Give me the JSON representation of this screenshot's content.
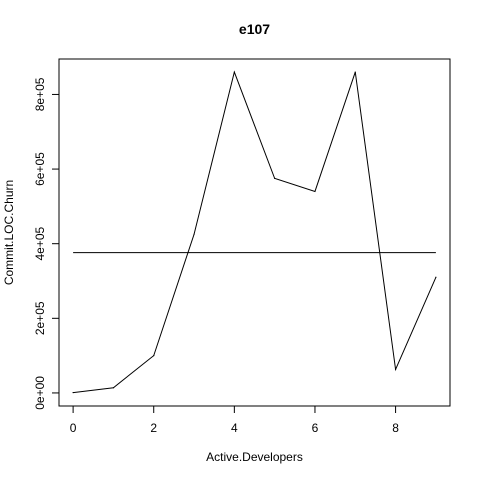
{
  "chart_data": {
    "type": "line",
    "title": "e107",
    "xlabel": "Active.Developers",
    "ylabel": "Commit.LOC.Churn",
    "xlim": [
      -0.35,
      9.35
    ],
    "ylim": [
      -35000,
      895000
    ],
    "x_ticks": [
      0,
      2,
      4,
      6,
      8
    ],
    "x_tick_labels": [
      "0",
      "2",
      "4",
      "6",
      "8"
    ],
    "y_ticks": [
      0,
      200000,
      400000,
      600000,
      800000
    ],
    "y_tick_labels": [
      "0e+00",
      "2e+05",
      "4e+05",
      "6e+05",
      "8e+05"
    ],
    "grid": false,
    "legend": "none",
    "series": [
      {
        "x": [
          0,
          1,
          2,
          3,
          4,
          5,
          6,
          7,
          8,
          9
        ],
        "values": [
          1000,
          14000,
          100000,
          425000,
          860000,
          575000,
          540000,
          860000,
          63000,
          310000
        ]
      }
    ],
    "reference_line": {
      "y": 376000,
      "x_from": 0,
      "x_to": 9
    }
  }
}
